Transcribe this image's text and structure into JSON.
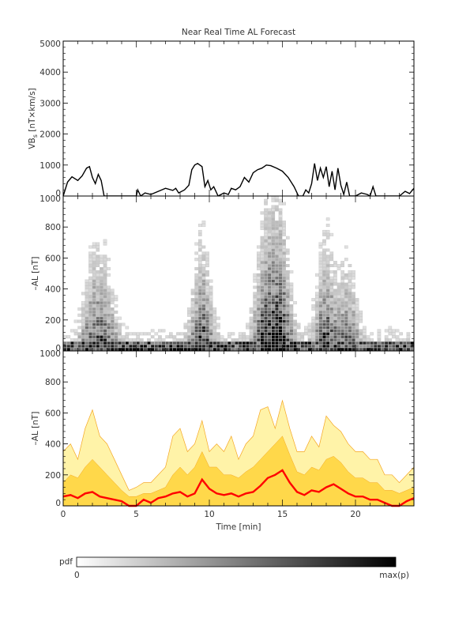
{
  "chart_data": [
    {
      "type": "line",
      "title": "Near Real Time AL Forecast",
      "ylabel_main": "VB",
      "ylabel_sub": "s",
      "ylabel_unit": " [nT×km/s]",
      "ylim": [
        0,
        5000
      ],
      "xlim": [
        0,
        24
      ],
      "yticks": [
        "0",
        "1000",
        "2000",
        "3000",
        "4000",
        "5000"
      ],
      "series": [
        {
          "x": [
            0,
            0.3,
            0.6,
            1.0,
            1.3,
            1.6,
            1.8,
            2.0,
            2.2,
            2.4,
            2.6,
            2.8,
            3.0,
            3.2,
            3.5,
            4.5,
            5.0,
            5.1,
            5.3,
            5.6,
            6.0,
            6.5,
            7.0,
            7.5,
            7.7,
            7.9,
            8.3,
            8.6,
            8.8,
            9.0,
            9.2,
            9.5,
            9.7,
            9.9,
            10.1,
            10.3,
            10.6,
            11.0,
            11.3,
            11.5,
            11.8,
            12.1,
            12.4,
            12.7,
            13.0,
            13.3,
            13.6,
            13.9,
            14.2,
            14.6,
            15.0,
            15.4,
            15.8,
            16.1,
            16.4,
            16.6,
            16.8,
            17.0,
            17.2,
            17.4,
            17.6,
            17.8,
            18.0,
            18.2,
            18.4,
            18.6,
            18.8,
            19.0,
            19.2,
            19.4,
            19.6,
            20.0,
            20.4,
            20.8,
            21.0,
            21.2,
            21.4,
            22.0,
            23.0,
            23.4,
            23.7,
            24.0
          ],
          "y": [
            0,
            450,
            620,
            500,
            650,
            900,
            950,
            600,
            400,
            700,
            500,
            0,
            0,
            0,
            0,
            0,
            0,
            200,
            0,
            100,
            50,
            150,
            250,
            180,
            250,
            100,
            200,
            350,
            850,
            1000,
            1050,
            950,
            300,
            500,
            200,
            300,
            0,
            100,
            50,
            250,
            200,
            300,
            600,
            450,
            750,
            850,
            900,
            1000,
            980,
            900,
            800,
            600,
            300,
            0,
            0,
            200,
            100,
            400,
            1050,
            500,
            900,
            600,
            950,
            300,
            800,
            200,
            900,
            350,
            50,
            450,
            0,
            0,
            100,
            50,
            0,
            300,
            0,
            0,
            0,
            150,
            80,
            250
          ]
        }
      ]
    },
    {
      "type": "heatmap",
      "ylabel": "–AL [nT]",
      "ylim": [
        0,
        1000
      ],
      "xlim": [
        0,
        24
      ],
      "yticks": [
        "0",
        "200",
        "400",
        "600",
        "800",
        "1000"
      ],
      "grid": {
        "columns": 96,
        "rows": 50
      },
      "events": [
        {
          "x": 2.0,
          "strength": 0.6
        },
        {
          "x": 3.0,
          "strength": 0.5
        },
        {
          "x": 9.5,
          "strength": 0.8
        },
        {
          "x": 13.8,
          "strength": 0.9
        },
        {
          "x": 14.9,
          "strength": 1.0
        },
        {
          "x": 18.0,
          "strength": 0.8
        },
        {
          "x": 19.5,
          "strength": 0.6
        }
      ]
    },
    {
      "type": "area",
      "xlabel": "Time [min]",
      "ylabel": "–AL [nT]",
      "ylim": [
        0,
        1000
      ],
      "xlim": [
        0,
        24
      ],
      "xticks": [
        "0",
        "5",
        "10",
        "15",
        "20"
      ],
      "yticks": [
        "0",
        "200",
        "400",
        "600",
        "800",
        "1000"
      ],
      "x": [
        0,
        0.5,
        1,
        1.5,
        2,
        2.5,
        3,
        3.5,
        4,
        4.5,
        5,
        5.5,
        6,
        6.5,
        7,
        7.5,
        8,
        8.5,
        9,
        9.5,
        10,
        10.5,
        11,
        11.5,
        12,
        12.5,
        13,
        13.5,
        14,
        14.5,
        15,
        15.5,
        16,
        16.5,
        17,
        17.5,
        18,
        18.5,
        19,
        19.5,
        20,
        20.5,
        21,
        21.5,
        22,
        22.5,
        23,
        23.5,
        24
      ],
      "series": [
        {
          "name": "upper",
          "color": "#f5a623",
          "values": [
            350,
            400,
            300,
            500,
            620,
            450,
            400,
            300,
            200,
            100,
            120,
            150,
            150,
            200,
            250,
            450,
            500,
            350,
            400,
            550,
            350,
            400,
            350,
            450,
            300,
            400,
            450,
            620,
            640,
            500,
            680,
            500,
            350,
            350,
            450,
            380,
            580,
            520,
            480,
            400,
            350,
            350,
            300,
            300,
            200,
            200,
            150,
            200,
            250
          ]
        },
        {
          "name": "middle",
          "color": "#ffd84a",
          "values": [
            150,
            200,
            180,
            250,
            300,
            250,
            200,
            150,
            100,
            60,
            60,
            80,
            80,
            100,
            120,
            200,
            250,
            200,
            250,
            350,
            250,
            250,
            200,
            200,
            180,
            220,
            250,
            300,
            350,
            400,
            450,
            330,
            220,
            200,
            250,
            230,
            300,
            320,
            280,
            220,
            180,
            180,
            150,
            150,
            100,
            100,
            80,
            100,
            120
          ]
        },
        {
          "name": "median",
          "color": "#ff0000",
          "values": [
            60,
            70,
            50,
            80,
            90,
            60,
            50,
            40,
            30,
            0,
            0,
            40,
            20,
            50,
            60,
            80,
            90,
            60,
            80,
            170,
            110,
            80,
            70,
            80,
            60,
            80,
            90,
            130,
            180,
            200,
            230,
            150,
            90,
            70,
            100,
            90,
            120,
            140,
            110,
            80,
            60,
            60,
            40,
            40,
            20,
            0,
            0,
            30,
            50
          ]
        }
      ]
    }
  ],
  "colorbar": {
    "label": "pdf",
    "min_label": "0",
    "max_label": "max(p)"
  }
}
